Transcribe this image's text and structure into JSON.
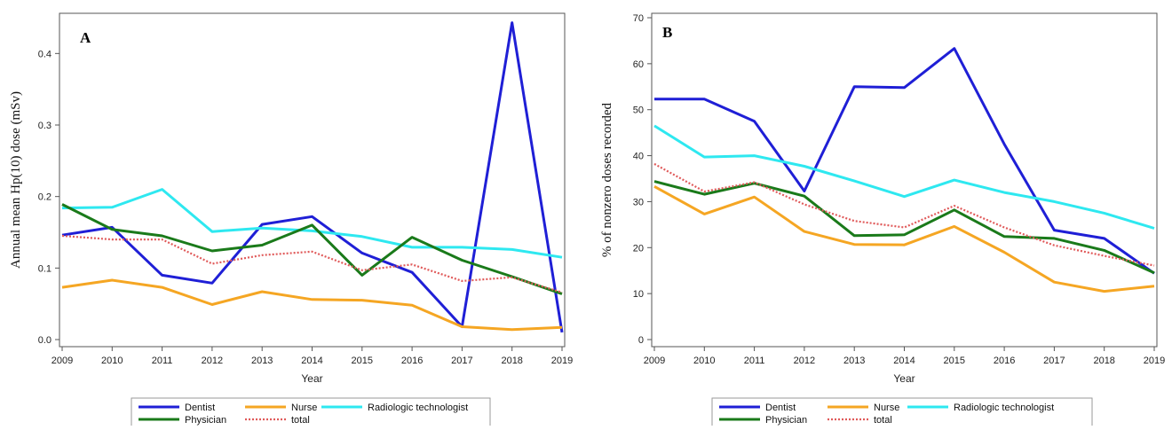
{
  "chart_data": [
    {
      "type": "line",
      "panel_label": "A",
      "title": "",
      "xlabel": "Year",
      "ylabel": "Annual mean Hp(10) dose (mSv)",
      "x": [
        2009,
        2010,
        2011,
        2012,
        2013,
        2014,
        2015,
        2016,
        2017,
        2018,
        2019
      ],
      "xlim": [
        2009,
        2019
      ],
      "ylim": [
        0.0,
        0.45
      ],
      "yticks": [
        "0.0",
        "0.1",
        "0.2",
        "0.3",
        "0.4"
      ],
      "grid": false,
      "legend_position": "bottom",
      "series": [
        {
          "name": "Dentist",
          "color": "#1f1fd6",
          "dash": "solid",
          "values": [
            0.146,
            0.157,
            0.09,
            0.079,
            0.161,
            0.172,
            0.121,
            0.094,
            0.018,
            0.443,
            0.01
          ]
        },
        {
          "name": "Nurse",
          "color": "#f5a623",
          "dash": "solid",
          "values": [
            0.073,
            0.083,
            0.073,
            0.049,
            0.067,
            0.056,
            0.055,
            0.048,
            0.018,
            0.014,
            0.017
          ]
        },
        {
          "name": "Radiologic technologist",
          "color": "#2ee8f0",
          "dash": "solid",
          "values": [
            0.184,
            0.185,
            0.21,
            0.151,
            0.156,
            0.152,
            0.144,
            0.129,
            0.129,
            0.126,
            0.115
          ]
        },
        {
          "name": "Physician",
          "color": "#1a7a1a",
          "dash": "solid",
          "values": [
            0.189,
            0.154,
            0.145,
            0.124,
            0.132,
            0.16,
            0.09,
            0.143,
            0.111,
            0.088,
            0.064
          ]
        },
        {
          "name": "total",
          "color": "#e05a5a",
          "dash": "dotted",
          "values": [
            0.145,
            0.14,
            0.14,
            0.106,
            0.118,
            0.123,
            0.097,
            0.105,
            0.082,
            0.087,
            0.066
          ]
        }
      ]
    },
    {
      "type": "line",
      "panel_label": "B",
      "title": "",
      "xlabel": "Year",
      "ylabel": "% of nonzero doses recorded",
      "x": [
        2009,
        2010,
        2011,
        2012,
        2013,
        2014,
        2015,
        2016,
        2017,
        2018,
        2019
      ],
      "xlim": [
        2009,
        2019
      ],
      "ylim": [
        0,
        70
      ],
      "yticks": [
        "0",
        "10",
        "20",
        "30",
        "40",
        "50",
        "60",
        "70"
      ],
      "grid": false,
      "legend_position": "bottom",
      "series": [
        {
          "name": "Dentist",
          "color": "#1f1fd6",
          "dash": "solid",
          "values": [
            52.3,
            52.3,
            47.5,
            32.3,
            55.0,
            54.8,
            63.3,
            42.5,
            23.8,
            22.0,
            14.4
          ]
        },
        {
          "name": "Nurse",
          "color": "#f5a623",
          "dash": "solid",
          "values": [
            33.3,
            27.3,
            31.0,
            23.5,
            20.7,
            20.6,
            24.6,
            19.0,
            12.5,
            10.5,
            11.6
          ]
        },
        {
          "name": "Radiologic technologist",
          "color": "#2ee8f0",
          "dash": "solid",
          "values": [
            46.5,
            39.7,
            40.0,
            37.7,
            34.5,
            31.1,
            34.7,
            32.0,
            30.0,
            27.5,
            24.2
          ]
        },
        {
          "name": "Physician",
          "color": "#1a7a1a",
          "dash": "solid",
          "values": [
            34.4,
            31.6,
            34.0,
            31.2,
            22.6,
            22.8,
            28.2,
            22.4,
            22.0,
            19.4,
            14.5
          ]
        },
        {
          "name": "total",
          "color": "#e05a5a",
          "dash": "dotted",
          "values": [
            38.2,
            32.2,
            34.2,
            29.4,
            25.8,
            24.4,
            29.1,
            24.4,
            20.5,
            18.2,
            16.1
          ]
        }
      ]
    }
  ]
}
